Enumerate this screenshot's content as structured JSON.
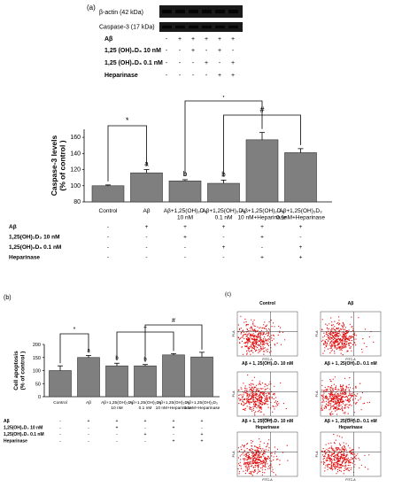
{
  "panel_a": {
    "label": "(a)",
    "blot_rows": [
      "β-actin (42 kDa)",
      "Caspase-3 (17 kDa)"
    ],
    "blot_lanes": 6,
    "treatment_rows": [
      {
        "label": "Aβ",
        "signs": [
          "-",
          "+",
          "+",
          "+",
          "+",
          "+"
        ]
      },
      {
        "label": "1,25 (OH)₂D₃ 10 nM",
        "signs": [
          "-",
          "-",
          "+",
          "-",
          "+",
          "-"
        ]
      },
      {
        "label": "1,25 (OH)₂D₃ 0.1 nM",
        "signs": [
          "-",
          "-",
          "-",
          "+",
          "-",
          "+"
        ]
      },
      {
        "label": "Heparinase",
        "signs": [
          "-",
          "-",
          "-",
          "-",
          "+",
          "+"
        ]
      }
    ]
  },
  "panel_b": {
    "label": "(b)"
  },
  "panel_c": {
    "label": "(c)",
    "plots": [
      {
        "title": "Control",
        "density": 0.9
      },
      {
        "title": "Aβ",
        "density": 1.0
      },
      {
        "title": "Aβ + 1, 25(OH)₂D₃ 10 nM",
        "density": 0.9
      },
      {
        "title": "Aβ + 1, 25(OH)₂D₃ 0.1 nM",
        "density": 0.95
      },
      {
        "title": "Aβ + 1, 25(OH)₂D₃ 10 nM Heparinase",
        "density": 0.9
      },
      {
        "title": "Aβ + 1, 25(OH)₂D₃ 0.1 nM Heparinase",
        "density": 0.9
      }
    ],
    "xaxis": "FITC-A",
    "yaxis": "PI-A"
  },
  "chart_data": [
    {
      "type": "bar",
      "ylabel": "Caspase-3 levels (% of control )",
      "ylim": [
        80,
        170
      ],
      "yticks": [
        80,
        100,
        120,
        140,
        160
      ],
      "categories": [
        "Control",
        "Aβ",
        "Aβ+1,25(OH)₂D₃ 10 nM",
        "Aβ+1,25(OH)₂D₃ 0.1 nM",
        "Aβ+1,25(OH)₂D₃ 10 nM+Heparinase",
        "Aβ+1,25(OH)₂D₃ 0.1nM+Heparinase"
      ],
      "values": [
        100,
        116,
        106,
        103,
        157,
        141
      ],
      "errors": [
        1,
        4,
        1.5,
        4,
        9,
        5
      ],
      "bar_letters": [
        "",
        "a",
        "b",
        "b",
        "",
        ""
      ],
      "brackets": [
        {
          "from": 0,
          "to": 1,
          "symbol": "*"
        },
        {
          "from": 2,
          "to": 4,
          "symbol": "+"
        },
        {
          "from": 3,
          "to": 5,
          "symbol": "#"
        }
      ],
      "treatment_rows": [
        {
          "label": "Aβ",
          "signs": [
            "-",
            "+",
            "+",
            "+",
            "+",
            "+"
          ]
        },
        {
          "label": "1,25(OH)₂D₃ 10 nM",
          "signs": [
            "-",
            "-",
            "+",
            "-",
            "+",
            "-"
          ]
        },
        {
          "label": "1,25(OH)₂D₃ 0.1 nM",
          "signs": [
            "-",
            "-",
            "-",
            "+",
            "-",
            "+"
          ]
        },
        {
          "label": "Heparinase",
          "signs": [
            "-",
            "-",
            "-",
            "-",
            "+",
            "+"
          ]
        }
      ]
    },
    {
      "type": "bar",
      "ylabel": "Cell apoptosis (% of control )",
      "ylim": [
        0,
        200
      ],
      "yticks": [
        0,
        50,
        100,
        150,
        200
      ],
      "categories": [
        "Control",
        "Aβ",
        "Aβ+1,25(OH)₂D₃ 10 nM",
        "Aβ+1,25(OH)₂D₃ 0.1 nM",
        "Aβ+1,25(OH)₂D₃ 10 nM+Heparinase",
        "Aβ+1,25(OH)₂D₃ 0.1nM+Heparinase"
      ],
      "values": [
        100,
        150,
        118,
        118,
        160,
        152
      ],
      "errors": [
        18,
        8,
        10,
        5,
        5,
        18
      ],
      "bar_letters": [
        "",
        "a",
        "b",
        "b",
        "",
        ""
      ],
      "brackets": [
        {
          "from": 0,
          "to": 1,
          "symbol": "*"
        },
        {
          "from": 2,
          "to": 4,
          "symbol": "+"
        },
        {
          "from": 3,
          "to": 5,
          "symbol": "#"
        }
      ],
      "treatment_rows": [
        {
          "label": "Aβ",
          "signs": [
            "-",
            "+",
            "+",
            "+",
            "+",
            "+"
          ]
        },
        {
          "label": "1,25(OH)₂D₃ 10 nM",
          "signs": [
            "-",
            "-",
            "+",
            "-",
            "+",
            "-"
          ]
        },
        {
          "label": "1,25(OH)₂D₃ 0.1 nM",
          "signs": [
            "-",
            "-",
            "-",
            "+",
            "-",
            "+"
          ]
        },
        {
          "label": "Heparinase",
          "signs": [
            "-",
            "-",
            "-",
            "-",
            "+",
            "+"
          ]
        }
      ]
    }
  ]
}
